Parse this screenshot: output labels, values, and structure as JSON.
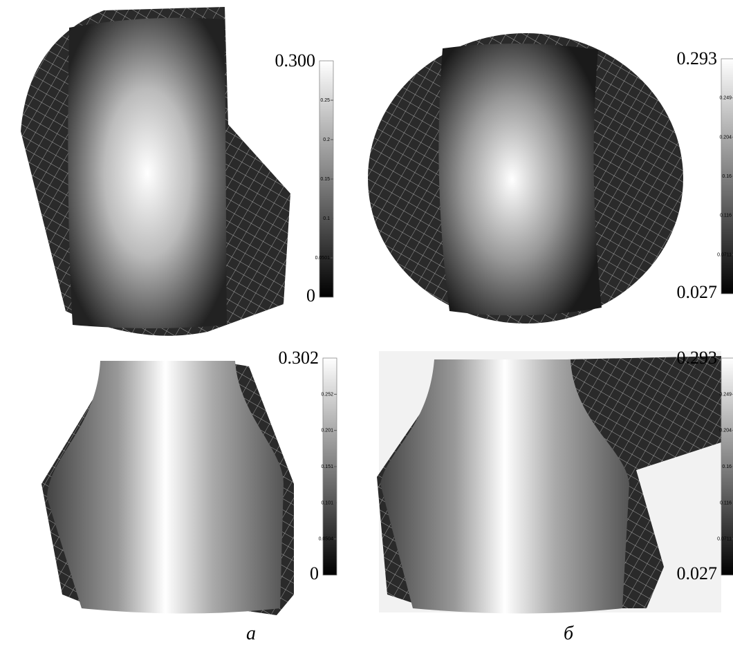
{
  "panels": [
    {
      "colorbar": {
        "max_label": "0.300",
        "ticks": [
          "0.25",
          "0.2",
          "0.15",
          "0.1",
          "0.0501"
        ],
        "min_label": "0"
      }
    },
    {
      "colorbar": {
        "max_label": "0.293",
        "ticks": [
          "0.249",
          "0.204",
          "0.16",
          "0.116",
          "0.0711"
        ],
        "min_label": "0.027"
      }
    },
    {
      "colorbar": {
        "max_label": "0.302",
        "ticks": [
          "0.252",
          "0.201",
          "0.151",
          "0.101",
          "0.0504"
        ],
        "min_label": "0"
      }
    },
    {
      "colorbar": {
        "max_label": "0.293",
        "ticks": [
          "0.249",
          "0.204",
          "0.16",
          "0.116",
          "0.0711"
        ],
        "min_label": "0.027"
      }
    }
  ],
  "captions": [
    "а",
    "б"
  ]
}
